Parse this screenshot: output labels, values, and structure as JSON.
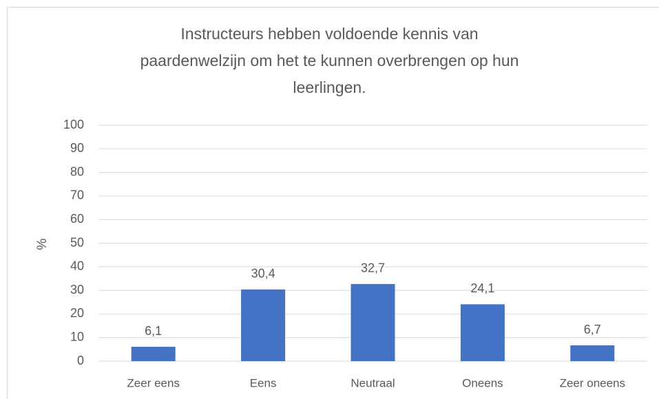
{
  "chart_data": {
    "type": "bar",
    "title": "Instructeurs hebben voldoende kennis van\npaardenwelzijn om het te kunnen overbrengen op hun\nleerlingen.",
    "y_label": "%",
    "categories": [
      "Zeer eens",
      "Eens",
      "Neutraal",
      "Oneens",
      "Zeer oneens"
    ],
    "values": [
      6.1,
      30.4,
      32.7,
      24.1,
      6.7
    ],
    "value_labels": [
      "6,1",
      "30,4",
      "32,7",
      "24,1",
      "6,7"
    ],
    "color": "#4472c4",
    "ylim": [
      0,
      100
    ],
    "yticks": [
      0,
      10,
      20,
      30,
      40,
      50,
      60,
      70,
      80,
      90,
      100
    ],
    "grid": true
  }
}
